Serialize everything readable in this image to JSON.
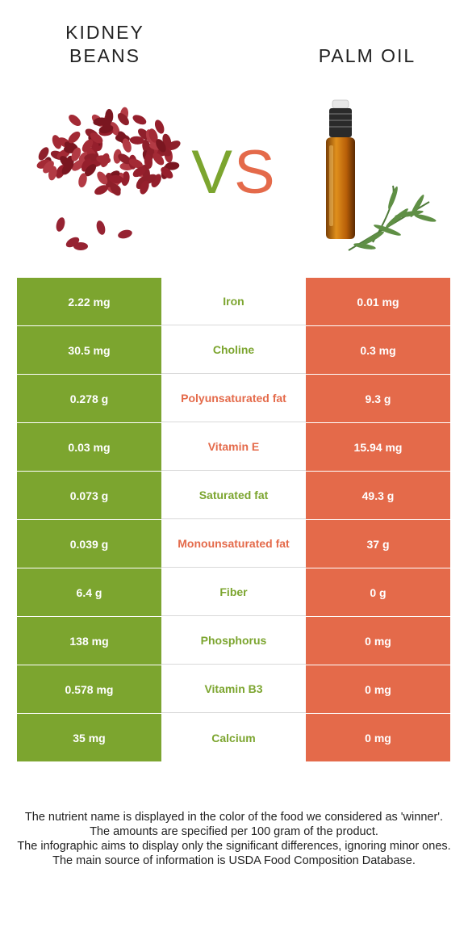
{
  "header": {
    "left_food": "KIDNEY\nBEANS",
    "right_food": "PALM OIL",
    "vs_v": "V",
    "vs_s": "S"
  },
  "colors": {
    "left": "#7ca52f",
    "right": "#e46a4a"
  },
  "rows": [
    {
      "nutrient": "Iron",
      "left": "2.22 mg",
      "right": "0.01 mg",
      "winner": "left"
    },
    {
      "nutrient": "Choline",
      "left": "30.5 mg",
      "right": "0.3 mg",
      "winner": "left"
    },
    {
      "nutrient": "Polyunsaturated fat",
      "left": "0.278 g",
      "right": "9.3 g",
      "winner": "right"
    },
    {
      "nutrient": "Vitamin E",
      "left": "0.03 mg",
      "right": "15.94 mg",
      "winner": "right"
    },
    {
      "nutrient": "Saturated fat",
      "left": "0.073 g",
      "right": "49.3 g",
      "winner": "left"
    },
    {
      "nutrient": "Monounsaturated fat",
      "left": "0.039 g",
      "right": "37 g",
      "winner": "right"
    },
    {
      "nutrient": "Fiber",
      "left": "6.4 g",
      "right": "0 g",
      "winner": "left"
    },
    {
      "nutrient": "Phosphorus",
      "left": "138 mg",
      "right": "0 mg",
      "winner": "left"
    },
    {
      "nutrient": "Vitamin B3",
      "left": "0.578 mg",
      "right": "0 mg",
      "winner": "left"
    },
    {
      "nutrient": "Calcium",
      "left": "35 mg",
      "right": "0 mg",
      "winner": "left"
    }
  ],
  "footer": [
    "The nutrient name is displayed in the color of the food we considered as 'winner'.",
    "The amounts are specified per 100 gram of the product.",
    "The infographic aims to display only the significant differences, ignoring minor ones.",
    "The main source of information is USDA Food Composition Database."
  ]
}
